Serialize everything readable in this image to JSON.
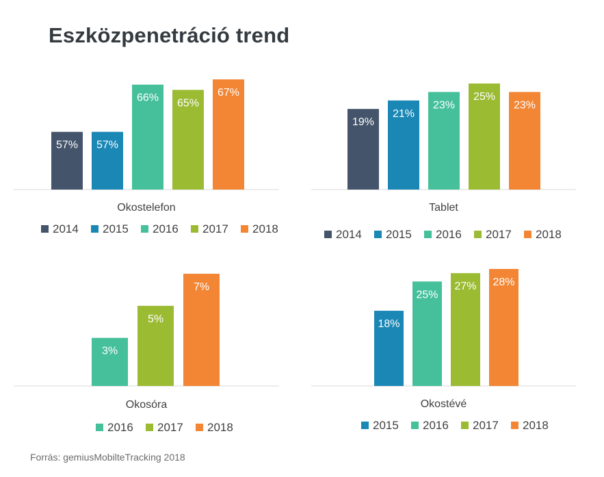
{
  "title": "Eszközpenetráció trend",
  "source": "Forrás: gemiusMobilteTracking 2018",
  "colors": {
    "2014": "#44546a",
    "2015": "#1a87b5",
    "2016": "#45c09b",
    "2017": "#9bbb33",
    "2018": "#f28634",
    "axis": "#d9d9d9"
  },
  "chart_data": [
    {
      "type": "bar",
      "category": "Okostelefon",
      "series": [
        {
          "name": "2014",
          "value": 57,
          "label": "57%"
        },
        {
          "name": "2015",
          "value": 57,
          "label": "57%"
        },
        {
          "name": "2016",
          "value": 66,
          "label": "66%"
        },
        {
          "name": "2017",
          "value": 65,
          "label": "65%"
        },
        {
          "name": "2018",
          "value": 67,
          "label": "67%"
        }
      ],
      "legend": [
        "2014",
        "2015",
        "2016",
        "2017",
        "2018"
      ],
      "ylim": [
        46,
        67
      ]
    },
    {
      "type": "bar",
      "category": "Tablet",
      "series": [
        {
          "name": "2014",
          "value": 19,
          "label": "19%"
        },
        {
          "name": "2015",
          "value": 21,
          "label": "21%"
        },
        {
          "name": "2016",
          "value": 23,
          "label": "23%"
        },
        {
          "name": "2017",
          "value": 25,
          "label": "25%"
        },
        {
          "name": "2018",
          "value": 23,
          "label": "23%"
        }
      ],
      "legend": [
        "2014",
        "2015",
        "2016",
        "2017",
        "2018"
      ],
      "ylim": [
        0,
        25
      ]
    },
    {
      "type": "bar",
      "category": "Okosóra",
      "series": [
        {
          "name": "2016",
          "value": 3,
          "label": "3%"
        },
        {
          "name": "2017",
          "value": 5,
          "label": "5%"
        },
        {
          "name": "2018",
          "value": 7,
          "label": "7%"
        }
      ],
      "legend": [
        "2016",
        "2017",
        "2018"
      ],
      "ylim": [
        0,
        7
      ]
    },
    {
      "type": "bar",
      "category": "Okostévé",
      "series": [
        {
          "name": "2015",
          "value": 18,
          "label": "18%"
        },
        {
          "name": "2016",
          "value": 25,
          "label": "25%"
        },
        {
          "name": "2017",
          "value": 27,
          "label": "27%"
        },
        {
          "name": "2018",
          "value": 28,
          "label": "28%"
        }
      ],
      "legend": [
        "2015",
        "2016",
        "2017",
        "2018"
      ],
      "ylim": [
        0,
        28
      ]
    }
  ]
}
